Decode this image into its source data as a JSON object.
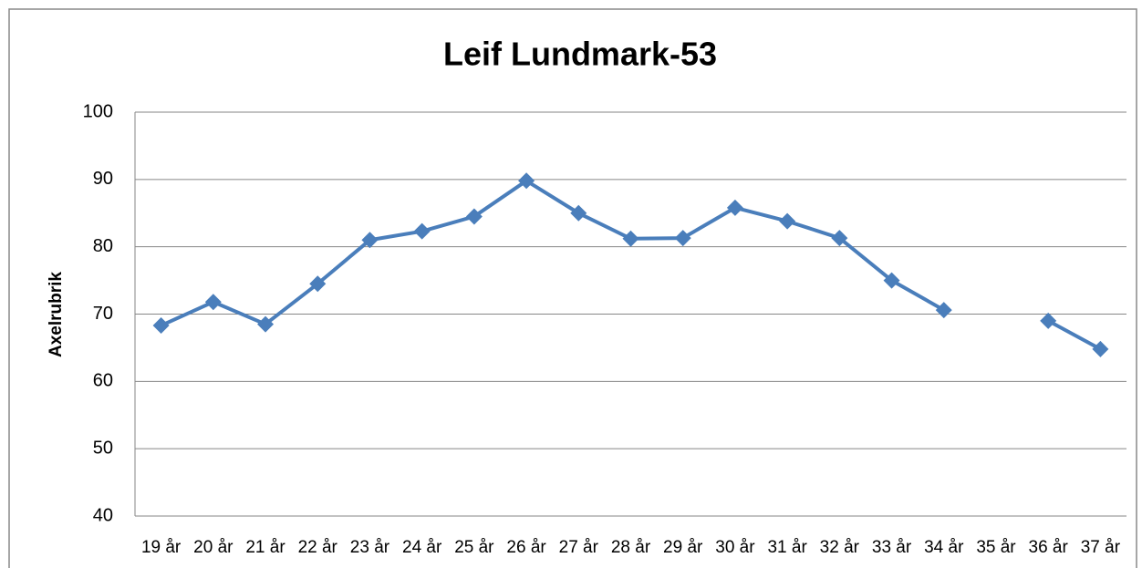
{
  "chart_data": {
    "type": "line",
    "title": "Leif Lundmark-53",
    "ylabel": "Axelrubrik",
    "categories": [
      "19 år",
      "20 år",
      "21 år",
      "22 år",
      "23 år",
      "24 år",
      "25 år",
      "26 år",
      "27 år",
      "28 år",
      "29 år",
      "30 år",
      "31 år",
      "32 år",
      "33 år",
      "34 år",
      "35 år",
      "36 år",
      "37 år"
    ],
    "series": [
      {
        "name": "Leif Lundmark-53",
        "color": "#4a7ebb",
        "values": [
          68.3,
          71.8,
          68.5,
          74.5,
          81,
          82.3,
          84.5,
          89.8,
          85,
          81.2,
          81.3,
          85.8,
          83.8,
          81.3,
          75,
          70.6,
          null,
          69,
          64.8
        ]
      }
    ],
    "ylim": [
      40,
      100
    ],
    "yticks": [
      40,
      50,
      60,
      70,
      80,
      90,
      100
    ],
    "grid": true
  }
}
